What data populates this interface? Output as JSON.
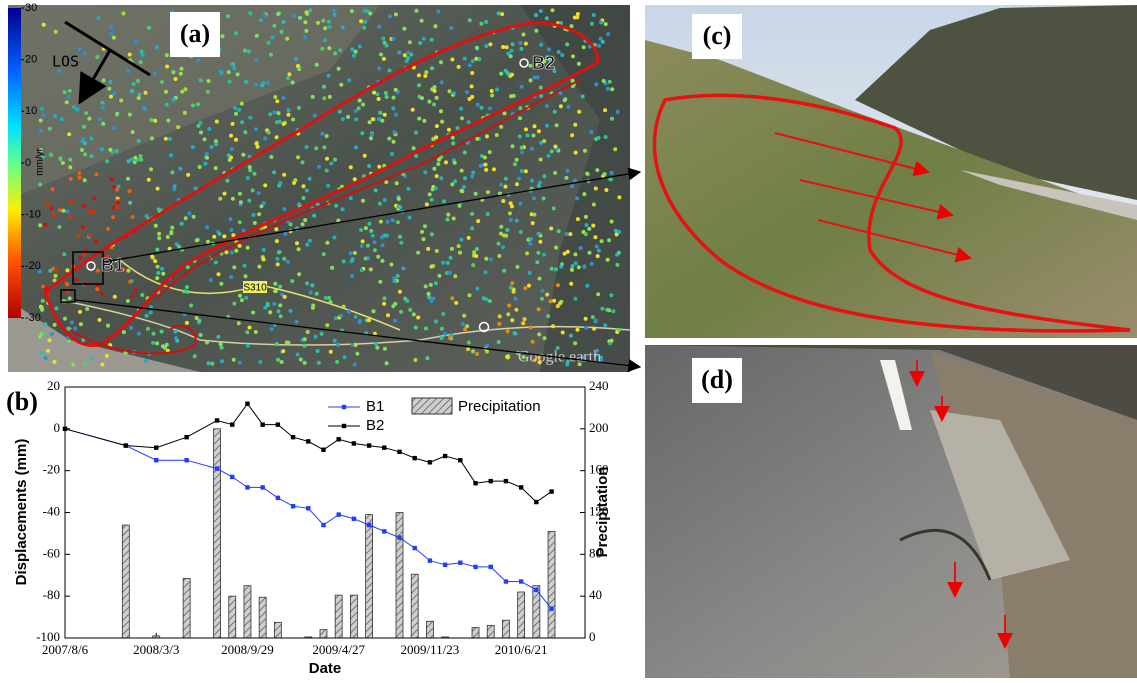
{
  "panel_a": {
    "label": "(a)",
    "los": "LOS",
    "point_1": "B1",
    "point_2": "B2",
    "road": "S310",
    "watermark": "Google earth",
    "colorbar": {
      "label": "mm/yr",
      "lim": [
        -30,
        30
      ],
      "ticks": [
        30,
        20,
        10,
        0,
        -10,
        -20,
        -30
      ]
    }
  },
  "panel_c": {
    "label": "(c)"
  },
  "panel_d": {
    "label": "(d)"
  },
  "chart_data": {
    "type": "line",
    "panel_label": "(b)",
    "xlabel": "Date",
    "ylabel": "Displacements (mm)",
    "y2label": "Precipitation",
    "x": [
      "2007-08-06",
      "2007-12-24",
      "2008-03-03",
      "2008-05-12",
      "2008-07-21",
      "2008-08-25",
      "2008-09-29",
      "2008-11-03",
      "2008-12-08",
      "2009-01-12",
      "2009-02-16",
      "2009-03-23",
      "2009-04-27",
      "2009-06-01",
      "2009-07-06",
      "2009-08-10",
      "2009-09-14",
      "2009-10-19",
      "2009-11-23",
      "2009-12-28",
      "2010-02-01",
      "2010-03-08",
      "2010-04-12",
      "2010-05-17",
      "2010-06-21",
      "2010-07-26",
      "2010-08-30"
    ],
    "series": [
      {
        "name": "B1",
        "color": "#1f3cff",
        "values": [
          0,
          -8,
          -15,
          -15,
          -19,
          -23,
          -28,
          -28,
          -33,
          -37,
          -38,
          -46,
          -41,
          -43,
          -46,
          -49,
          -52,
          -57,
          -63,
          -65,
          -64,
          -66,
          -66,
          -73,
          -73,
          -77,
          -86
        ]
      },
      {
        "name": "B2",
        "color": "#000000",
        "values": [
          0,
          -8,
          -9,
          -4,
          4,
          2,
          12,
          2,
          2,
          -4,
          -6,
          -10,
          -5,
          -7,
          -8,
          -9,
          -11,
          -14,
          -16,
          -13,
          -15,
          -26,
          -25,
          -25,
          -28,
          -35,
          -30
        ]
      },
      {
        "name": "Precipitation",
        "type": "bar",
        "axis": "y2",
        "color": "#8c8c8c",
        "values": [
          null,
          108,
          2,
          57,
          200,
          40,
          50,
          39,
          15,
          null,
          1,
          8,
          41,
          41,
          118,
          null,
          120,
          61,
          16,
          1,
          null,
          10,
          12,
          17,
          44,
          50,
          102
        ]
      }
    ],
    "xlim": [
      "2007-08-06",
      "2010-11-15"
    ],
    "xticks": [
      {
        "value": "2007-08-06",
        "label": "2007/8/6"
      },
      {
        "value": "2008-03-03",
        "label": "2008/3/3"
      },
      {
        "value": "2008-09-29",
        "label": "2008/9/29"
      },
      {
        "value": "2009-04-27",
        "label": "2009/4/27"
      },
      {
        "value": "2009-11-23",
        "label": "2009/11/23"
      },
      {
        "value": "2010-06-21",
        "label": "2010/6/21"
      }
    ],
    "ylim": [
      -100,
      20
    ],
    "yticks": [
      20,
      0,
      -20,
      -40,
      -60,
      -80,
      -100
    ],
    "y2lim": [
      0,
      240
    ],
    "y2ticks": [
      0,
      40,
      80,
      120,
      160,
      200,
      240
    ]
  }
}
